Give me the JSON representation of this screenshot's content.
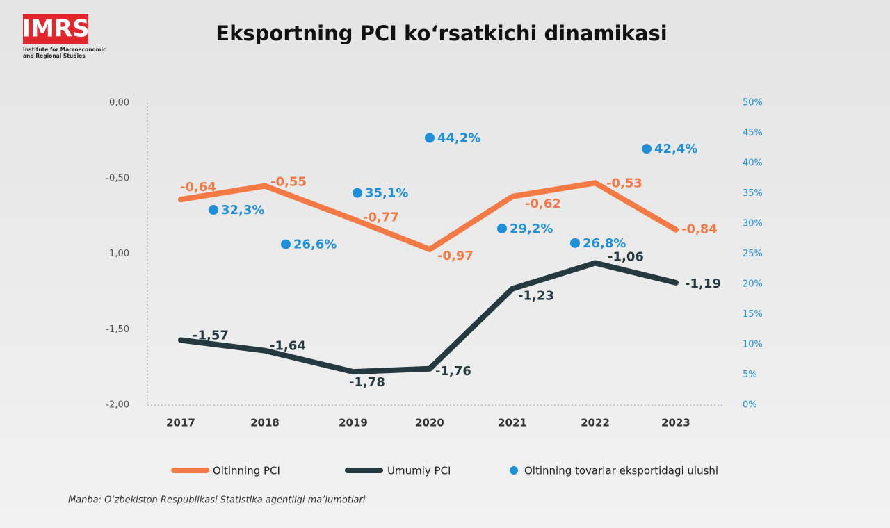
{
  "logo": {
    "text": "IMRS",
    "lines": [
      "Institute for Macroeconomic",
      "and Regional Studies"
    ]
  },
  "chart_data": {
    "type": "line",
    "title": "Eksportning PCI ko‘rsatkichi dinamikasi",
    "source": "Manba: O‘zbekiston Respublikasi Statistika agentligi ma’lumotlari",
    "categories": [
      "2017",
      "2018",
      "2019",
      "2020",
      "2021",
      "2022",
      "2023"
    ],
    "series": [
      {
        "name": "Oltinning PCI",
        "color": "#f47a45",
        "values": [
          -0.64,
          -0.55,
          -0.77,
          -0.97,
          -0.62,
          -0.53,
          -0.84
        ],
        "value_labels": [
          "-0,64",
          "-0,55",
          "-0,77",
          "-0,97",
          "-0,62",
          "-0,53",
          "-0,84"
        ]
      },
      {
        "name": "Umumiy PCI",
        "color": "#243a40",
        "values": [
          -1.57,
          -1.64,
          -1.78,
          -1.76,
          -1.23,
          -1.06,
          -1.19
        ],
        "value_labels": [
          "-1,57",
          "-1,64",
          "-1,78",
          "-1,76",
          "-1,23",
          "-1,06",
          "-1,19"
        ]
      },
      {
        "name": "Oltinning tovarlar eksportidagi ulushi",
        "color": "#1e90d9",
        "type": "scatter",
        "axis": "y2",
        "values": [
          32.3,
          26.6,
          35.1,
          44.2,
          29.2,
          26.8,
          42.4
        ],
        "value_labels": [
          "32,3%",
          "26,6%",
          "35,1%",
          "44,2%",
          "29,2%",
          "26,8%",
          "42,4%"
        ]
      }
    ],
    "ylim": [
      -2,
      0
    ],
    "yticks": [
      {
        "value": 0,
        "label": "0,00"
      },
      {
        "value": -0.5,
        "label": "-0,50"
      },
      {
        "value": -1,
        "label": "-1,00"
      },
      {
        "value": -1.5,
        "label": "-1,50"
      },
      {
        "value": -2,
        "label": "-2,00"
      }
    ],
    "y2lim": [
      0,
      50
    ],
    "y2ticks": [
      {
        "value": 50,
        "label": "50%"
      },
      {
        "value": 45,
        "label": "45%"
      },
      {
        "value": 40,
        "label": "40%"
      },
      {
        "value": 35,
        "label": "35%"
      },
      {
        "value": 30,
        "label": "30%"
      },
      {
        "value": 25,
        "label": "25%"
      },
      {
        "value": 20,
        "label": "20%"
      },
      {
        "value": 15,
        "label": "15%"
      },
      {
        "value": 10,
        "label": "10%"
      },
      {
        "value": 5,
        "label": "5%"
      },
      {
        "value": 0,
        "label": "0%"
      }
    ]
  }
}
